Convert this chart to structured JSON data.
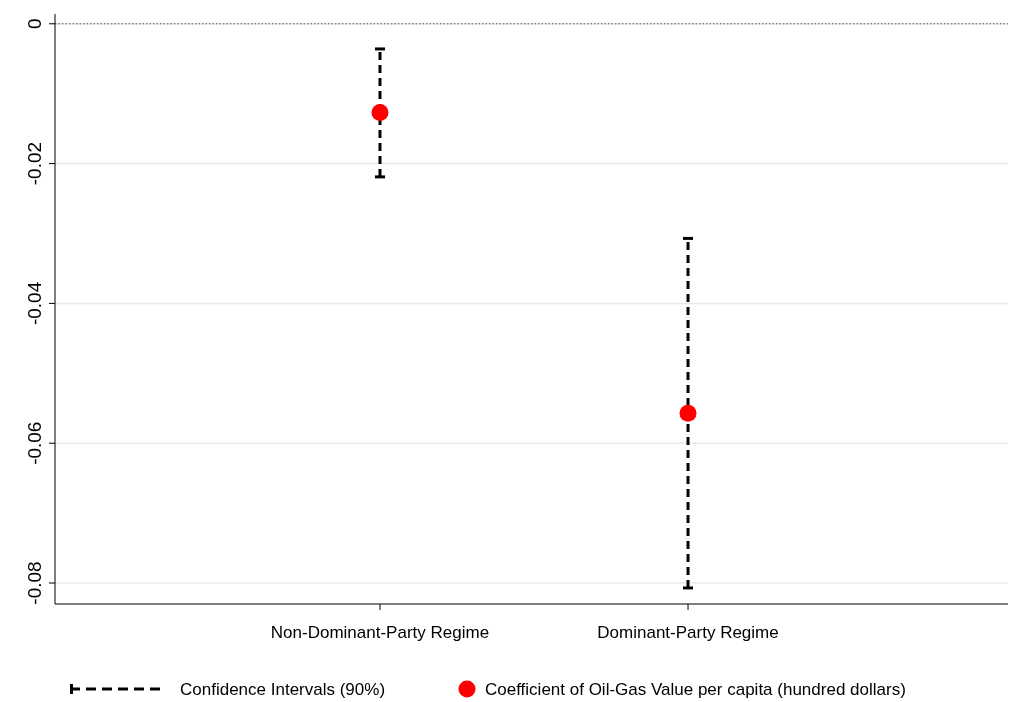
{
  "chart_data": {
    "type": "scatter",
    "categories": [
      "Non-Dominant-Party Regime",
      "Dominant-Party Regime"
    ],
    "series": [
      {
        "name": "Coefficient of Oil-Gas Value per capita (hundred dollars)",
        "color": "#ff0000",
        "values": [
          -0.0127,
          -0.0557
        ],
        "errors": [
          [
            -0.0219,
            -0.0036
          ],
          [
            -0.0807,
            -0.0307
          ]
        ]
      }
    ],
    "ylim": [
      -0.083,
      0.0014
    ],
    "yticks": [
      {
        "value": 0,
        "label": "0"
      },
      -0.02,
      -0.04,
      -0.06,
      -0.08
    ],
    "ref_lines": [
      {
        "axis": "y",
        "value": 0,
        "color": "#555555",
        "line_style": "dotted"
      }
    ],
    "annotations": [
      "Confidence Intervals (90%)"
    ],
    "grid": "y",
    "legend": "bottom",
    "marker": "circle"
  }
}
